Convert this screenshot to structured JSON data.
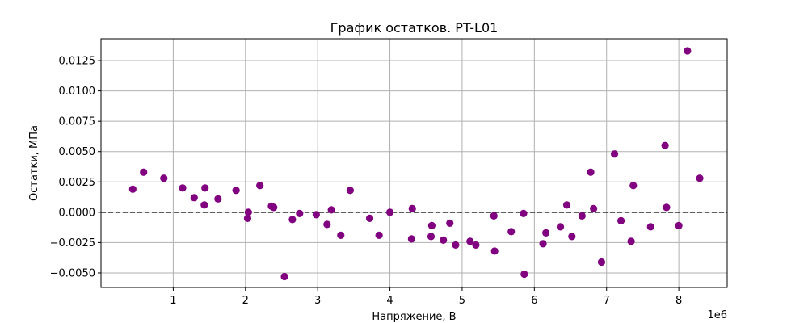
{
  "chart_data": {
    "type": "scatter",
    "title": "График остатков. PT-L01",
    "xlabel": "Напряжение, В",
    "ylabel": "Остатки, МПа",
    "x_scale_label": "1e6",
    "xlim": [
      0.0,
      8.67
    ],
    "ylim": [
      -0.0062,
      0.0143
    ],
    "x_ticks": [
      1,
      2,
      3,
      4,
      5,
      6,
      7,
      8
    ],
    "x_tick_labels": [
      "1",
      "2",
      "3",
      "4",
      "5",
      "6",
      "7",
      "8"
    ],
    "y_ticks": [
      -0.005,
      -0.0025,
      0.0,
      0.0025,
      0.005,
      0.0075,
      0.01,
      0.0125
    ],
    "y_tick_labels": [
      "−0.0050",
      "−0.0025",
      "0.0000",
      "0.0025",
      "0.0050",
      "0.0075",
      "0.0100",
      "0.0125"
    ],
    "grid": true,
    "reference_line": {
      "y": 0.0,
      "style": "dashed",
      "color": "#000000"
    },
    "marker_color": "#800080",
    "points": [
      {
        "x": 0.44,
        "y": 0.0019
      },
      {
        "x": 0.59,
        "y": 0.0033
      },
      {
        "x": 0.87,
        "y": 0.0028
      },
      {
        "x": 1.13,
        "y": 0.002
      },
      {
        "x": 1.29,
        "y": 0.0012
      },
      {
        "x": 1.43,
        "y": 0.0006
      },
      {
        "x": 1.44,
        "y": 0.002
      },
      {
        "x": 1.62,
        "y": 0.0011
      },
      {
        "x": 1.87,
        "y": 0.0018
      },
      {
        "x": 2.03,
        "y": -0.0005
      },
      {
        "x": 2.04,
        "y": 0.0
      },
      {
        "x": 2.2,
        "y": 0.0022
      },
      {
        "x": 2.36,
        "y": 0.0005
      },
      {
        "x": 2.39,
        "y": 0.0004
      },
      {
        "x": 2.54,
        "y": -0.0053
      },
      {
        "x": 2.65,
        "y": -0.0006
      },
      {
        "x": 2.75,
        "y": -0.0001
      },
      {
        "x": 2.98,
        "y": -0.0002
      },
      {
        "x": 3.13,
        "y": -0.001
      },
      {
        "x": 3.19,
        "y": 0.0002
      },
      {
        "x": 3.32,
        "y": -0.0019
      },
      {
        "x": 3.45,
        "y": 0.0018
      },
      {
        "x": 3.72,
        "y": -0.0005
      },
      {
        "x": 3.85,
        "y": -0.0019
      },
      {
        "x": 4.0,
        "y": 0.0
      },
      {
        "x": 4.3,
        "y": -0.0022
      },
      {
        "x": 4.31,
        "y": 0.0003
      },
      {
        "x": 4.57,
        "y": -0.002
      },
      {
        "x": 4.58,
        "y": -0.0011
      },
      {
        "x": 4.74,
        "y": -0.0023
      },
      {
        "x": 4.83,
        "y": -0.0009
      },
      {
        "x": 4.91,
        "y": -0.0027
      },
      {
        "x": 5.11,
        "y": -0.0024
      },
      {
        "x": 5.19,
        "y": -0.0027
      },
      {
        "x": 5.44,
        "y": -0.0003
      },
      {
        "x": 5.45,
        "y": -0.0032
      },
      {
        "x": 5.68,
        "y": -0.0016
      },
      {
        "x": 5.85,
        "y": -0.0001
      },
      {
        "x": 5.86,
        "y": -0.0051
      },
      {
        "x": 6.12,
        "y": -0.0026
      },
      {
        "x": 6.16,
        "y": -0.0017
      },
      {
        "x": 6.36,
        "y": -0.0012
      },
      {
        "x": 6.45,
        "y": 0.0006
      },
      {
        "x": 6.52,
        "y": -0.002
      },
      {
        "x": 6.66,
        "y": -0.0003
      },
      {
        "x": 6.78,
        "y": 0.0033
      },
      {
        "x": 6.82,
        "y": 0.0003
      },
      {
        "x": 6.93,
        "y": -0.0041
      },
      {
        "x": 7.11,
        "y": 0.0048
      },
      {
        "x": 7.2,
        "y": -0.0007
      },
      {
        "x": 7.34,
        "y": -0.0024
      },
      {
        "x": 7.37,
        "y": 0.0022
      },
      {
        "x": 7.61,
        "y": -0.0012
      },
      {
        "x": 7.81,
        "y": 0.0055
      },
      {
        "x": 7.83,
        "y": 0.0004
      },
      {
        "x": 8.0,
        "y": -0.0011
      },
      {
        "x": 8.12,
        "y": 0.0133
      },
      {
        "x": 8.29,
        "y": 0.0028
      }
    ]
  }
}
